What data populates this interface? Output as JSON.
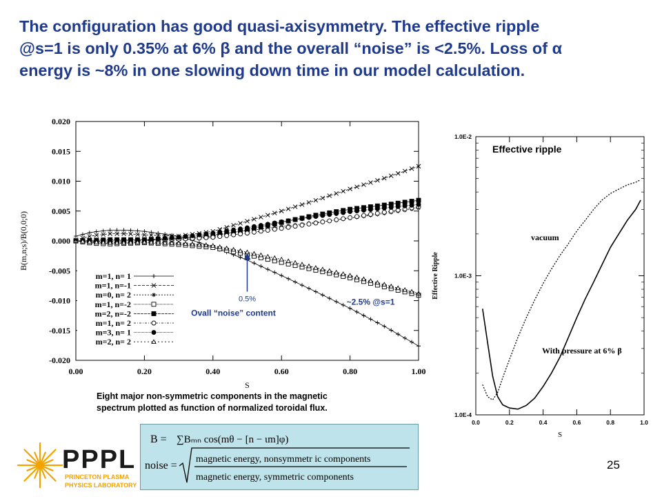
{
  "slide": {
    "title_lines": [
      "The configuration has good quasi-axisymmetry. The effective ripple",
      "@s=1 is only 0.35% at 6% β and the overall “noise” is <2.5%. Loss of α",
      "energy is ~8% in one slowing down time in our model calculation."
    ],
    "caption_lines": [
      "Eight major non-symmetric components in the magnetic",
      "spectrum plotted as function of normalized toroidal flux."
    ],
    "page_number": "25",
    "logo": {
      "text": "PPPL",
      "subtitle_lines": [
        "PRINCETON PLASMA",
        "PHYSICS LABORATORY"
      ],
      "color": "#1a1a1a",
      "accent": "#f2a300"
    },
    "formula": {
      "line1_lhs": "B =",
      "line1_rhs": "∑Bₘₙ cos(mθ − [n − ιm]φ)",
      "line2_lhs": "noise =",
      "numerator": "magnetic energy, nonsymmetr ic components",
      "denominator": "magnetic energy, symmetric  components"
    },
    "title_color": "#1f3a8a",
    "annotation_color": "#1f3a8a"
  },
  "chart_data": [
    {
      "type": "line",
      "xlabel": "S",
      "ylabel": "B(m,n;s)/B(0,0;0)",
      "xlim": [
        0,
        1
      ],
      "ylim": [
        -0.02,
        0.02
      ],
      "x_ticks": [
        "0.00",
        "0.20",
        "0.40",
        "0.60",
        "0.80",
        "1.00"
      ],
      "y_ticks": [
        "0.020",
        "0.015",
        "0.010",
        "0.005",
        "0.000",
        "-0.005",
        "-0.010",
        "-0.015",
        "-0.020"
      ],
      "grid": false,
      "legend_placement": "bottom-left",
      "x": [
        0,
        0.05,
        0.1,
        0.15,
        0.2,
        0.3,
        0.4,
        0.5,
        0.6,
        0.7,
        0.8,
        0.9,
        1.0
      ],
      "series": [
        {
          "name": "m=1, n= 1",
          "marker": "plus",
          "values": [
            0.0008,
            0.0015,
            0.0018,
            0.0018,
            0.0016,
            0.0008,
            -0.001,
            -0.0032,
            -0.0058,
            -0.0085,
            -0.0113,
            -0.0143,
            -0.0176
          ]
        },
        {
          "name": "m=1, n=-1",
          "marker": "x",
          "values": [
            0.0002,
            0.0009,
            0.0012,
            0.0012,
            0.001,
            0.0008,
            0.0016,
            0.0033,
            0.005,
            0.0068,
            0.0087,
            0.0105,
            0.0125
          ]
        },
        {
          "name": "m=0, n= 2",
          "marker": "star",
          "values": [
            0.0,
            -0.0003,
            -0.0004,
            -0.0003,
            0.0,
            0.0004,
            0.001,
            0.0017,
            0.0024,
            0.0031,
            0.0038,
            0.0046,
            0.0055
          ]
        },
        {
          "name": "m=1, n=-2",
          "marker": "square-open",
          "values": [
            0.0,
            -0.0004,
            -0.0005,
            -0.0004,
            -0.0003,
            -0.0006,
            -0.0011,
            -0.0023,
            -0.0036,
            -0.0049,
            -0.0062,
            -0.0077,
            -0.0091
          ]
        },
        {
          "name": "m=2, n=-2",
          "marker": "square-filled",
          "values": [
            0.0,
            0.0001,
            0.0002,
            0.0002,
            0.0002,
            0.0004,
            0.0008,
            0.0019,
            0.0031,
            0.0043,
            0.0053,
            0.006,
            0.0068
          ]
        },
        {
          "name": "m=1, n= 2",
          "marker": "circle-open",
          "values": [
            0.0,
            -0.0001,
            -0.0001,
            0.0,
            0.0001,
            0.0003,
            0.0006,
            0.0013,
            0.0021,
            0.003,
            0.0039,
            0.0048,
            0.0057
          ]
        },
        {
          "name": "m=3, n= 1",
          "marker": "circle-filled",
          "values": [
            0.0,
            0.0,
            0.0,
            0.0001,
            0.0002,
            0.0006,
            0.0013,
            0.0022,
            0.0032,
            0.0041,
            0.0049,
            0.0055,
            0.0061
          ]
        },
        {
          "name": "m=2, n= 2",
          "marker": "triangle-open",
          "values": [
            0.0,
            -0.0002,
            -0.0003,
            -0.0003,
            -0.0002,
            -0.0004,
            -0.0008,
            -0.0019,
            -0.0031,
            -0.0045,
            -0.0058,
            -0.0073,
            -0.0088
          ]
        }
      ],
      "annotations": {
        "arrow_label_value": "0.5%",
        "arrow_label_text": "Ovall “noise” content",
        "arrow_x": 0.5,
        "arrow_from_y": -0.0085,
        "arrow_to_y": -0.002,
        "edge_label": "~2.5% @s=1"
      }
    },
    {
      "type": "line",
      "title": "Effective ripple",
      "xlabel": "S",
      "ylabel": "Effective Ripple",
      "xlim": [
        0,
        1
      ],
      "ylim": [
        0.0001,
        0.01
      ],
      "yscale": "log",
      "x_ticks": [
        "0.0",
        "0.2",
        "0.4",
        "0.6",
        "0.8",
        "1.0"
      ],
      "y_ticks": [
        "1.0E-2",
        "1.0E-3",
        "1.0E-4"
      ],
      "series": [
        {
          "label": "vacuum",
          "style": "dotted",
          "x": [
            0.04,
            0.07,
            0.1,
            0.13,
            0.16,
            0.2,
            0.25,
            0.3,
            0.35,
            0.4,
            0.45,
            0.5,
            0.55,
            0.6,
            0.65,
            0.7,
            0.75,
            0.8,
            0.85,
            0.9,
            0.95,
            0.98
          ],
          "values": [
            0.000165,
            0.000135,
            0.000128,
            0.000145,
            0.000185,
            0.00025,
            0.00036,
            0.0005,
            0.00067,
            0.00088,
            0.00112,
            0.0014,
            0.0017,
            0.0021,
            0.0025,
            0.003,
            0.0035,
            0.0039,
            0.0042,
            0.0045,
            0.0047,
            0.0049
          ]
        },
        {
          "label": "With pressure at 6% β",
          "style": "solid",
          "x": [
            0.04,
            0.07,
            0.1,
            0.13,
            0.16,
            0.2,
            0.25,
            0.3,
            0.35,
            0.4,
            0.45,
            0.5,
            0.55,
            0.6,
            0.65,
            0.7,
            0.75,
            0.8,
            0.85,
            0.9,
            0.95,
            0.98
          ],
          "values": [
            0.00058,
            0.00033,
            0.00019,
            0.000135,
            0.000118,
            0.000112,
            0.00011,
            0.000117,
            0.000132,
            0.00016,
            0.0002,
            0.00026,
            0.00036,
            0.0005,
            0.00068,
            0.0009,
            0.0012,
            0.0016,
            0.002,
            0.0025,
            0.003,
            0.0035
          ]
        }
      ]
    }
  ]
}
